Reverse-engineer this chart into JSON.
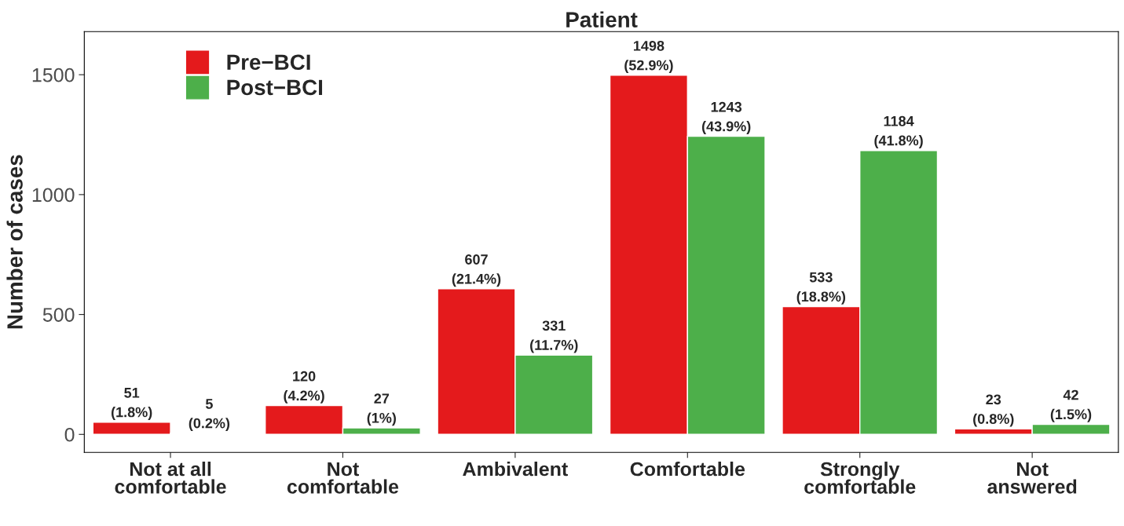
{
  "chart_data": {
    "type": "bar",
    "title": "Patient",
    "ylabel": "Number of cases",
    "categories": [
      "Not at all\ncomfortable",
      "Not\ncomfortable",
      "Ambivalent",
      "Comfortable",
      "Strongly\ncomfortable",
      "Not\nanswered"
    ],
    "series": [
      {
        "name": "Pre−BCI",
        "color": "#e41a1c",
        "values": [
          51,
          120,
          607,
          1498,
          533,
          23
        ],
        "value_labels": [
          "51\n(1.8%)",
          "120\n(4.2%)",
          "607\n(21.4%)",
          "1498\n(52.9%)",
          "533\n(18.8%)",
          "23\n(0.8%)"
        ]
      },
      {
        "name": "Post−BCI",
        "color": "#4daf4a",
        "values": [
          5,
          27,
          331,
          1243,
          1184,
          42
        ],
        "value_labels": [
          "5\n(0.2%)",
          "27\n(1%)",
          "331\n(11.7%)",
          "1243\n(43.9%)",
          "1184\n(41.8%)",
          "42\n(1.5%)"
        ]
      }
    ],
    "ylim": [
      -75,
      1680
    ],
    "yticks": [
      0,
      500,
      1000,
      1500
    ],
    "grid": false,
    "legend": "top left"
  }
}
